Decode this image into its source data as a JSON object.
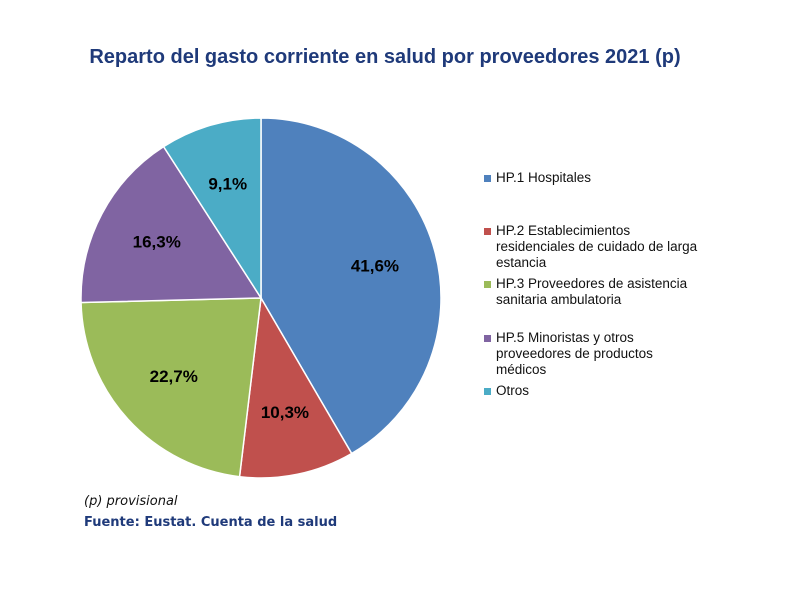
{
  "chart_data": {
    "type": "pie",
    "title": "Reparto del gasto corriente en salud por proveedores 2021 (p)",
    "slices": [
      {
        "label": "HP.1  Hospitales",
        "value": 41.6,
        "display": "41,6%",
        "color": "#4f81bd"
      },
      {
        "label": "HP.2 Establecimientos residenciales de cuidado de larga estancia",
        "value": 10.3,
        "display": "10,3%",
        "color": "#c0504d"
      },
      {
        "label": "HP.3 Proveedores de asistencia sanitaria ambulatoria",
        "value": 22.7,
        "display": "22,7%",
        "color": "#9bbb59"
      },
      {
        "label": "HP.5 Minoristas y otros proveedores de productos médicos",
        "value": 16.3,
        "display": "16,3%",
        "color": "#8064a2"
      },
      {
        "label": "Otros",
        "value": 9.1,
        "display": "9,1%",
        "color": "#4bacc6"
      }
    ],
    "legend_position": "right"
  },
  "footer": {
    "note": "(p) provisional",
    "source": "Fuente: Eustat. Cuenta de la salud"
  }
}
